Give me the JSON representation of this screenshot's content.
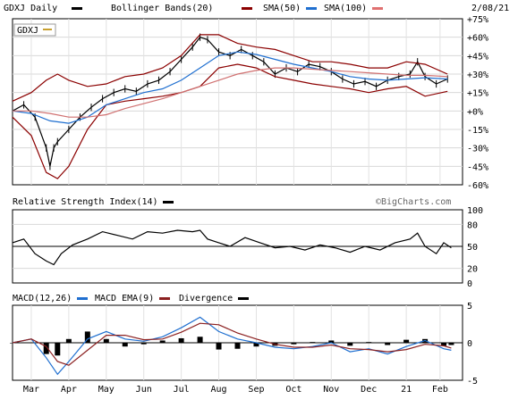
{
  "chart_data": [
    {
      "type": "line",
      "panel": "price",
      "header": {
        "symbol_label": "GDXJ Daily",
        "bollinger_label": "Bollinger Bands(20)",
        "sma50_label": "SMA(50)",
        "sma100_label": "SMA(100)",
        "date_label": "2/08/21"
      },
      "legend_tag": "GDXJ",
      "ylim": [
        -60,
        75
      ],
      "yticks": [
        "+75%",
        "+60%",
        "+45%",
        "+30%",
        "+15%",
        "+0%",
        "-15%",
        "-30%",
        "-45%",
        "-60%"
      ],
      "ytick_values": [
        75,
        60,
        45,
        30,
        15,
        0,
        -15,
        -30,
        -45,
        -60
      ],
      "x_range": [
        0,
        12
      ],
      "xticks": [
        "Mar",
        "Apr",
        "May",
        "Jun",
        "Jul",
        "Aug",
        "Sep",
        "Oct",
        "Nov",
        "Dec",
        "21",
        "Feb"
      ],
      "xtick_positions": [
        0.5,
        1.5,
        2.5,
        3.5,
        4.5,
        5.5,
        6.5,
        7.5,
        8.5,
        9.5,
        10.5,
        11.4
      ],
      "series": [
        {
          "key": "price",
          "x": [
            0,
            0.3,
            0.6,
            0.9,
            1.0,
            1.1,
            1.2,
            1.5,
            1.8,
            2.1,
            2.4,
            2.7,
            3.0,
            3.3,
            3.6,
            3.9,
            4.2,
            4.5,
            4.8,
            5.0,
            5.2,
            5.5,
            5.8,
            6.1,
            6.4,
            6.7,
            7.0,
            7.3,
            7.6,
            7.9,
            8.2,
            8.5,
            8.8,
            9.1,
            9.4,
            9.7,
            10.0,
            10.3,
            10.6,
            10.8,
            11.0,
            11.3,
            11.6
          ],
          "y": [
            0,
            5,
            -5,
            -30,
            -45,
            -30,
            -25,
            -15,
            -5,
            3,
            10,
            15,
            18,
            16,
            22,
            25,
            32,
            42,
            52,
            60,
            58,
            48,
            45,
            50,
            45,
            40,
            30,
            35,
            32,
            38,
            36,
            32,
            26,
            22,
            24,
            20,
            25,
            28,
            30,
            40,
            28,
            22,
            26
          ]
        },
        {
          "key": "bb_upper",
          "x": [
            0,
            0.5,
            0.9,
            1.2,
            1.5,
            2.0,
            2.5,
            3.0,
            3.5,
            4.0,
            4.5,
            5.0,
            5.5,
            6.0,
            6.5,
            7.0,
            7.5,
            8.0,
            8.5,
            9.0,
            9.5,
            10.0,
            10.5,
            11.0,
            11.6
          ],
          "y": [
            8,
            15,
            25,
            30,
            25,
            20,
            22,
            28,
            30,
            35,
            45,
            62,
            62,
            55,
            52,
            50,
            45,
            40,
            40,
            38,
            35,
            35,
            40,
            38,
            30
          ]
        },
        {
          "key": "bb_lower",
          "x": [
            0,
            0.5,
            0.9,
            1.2,
            1.5,
            2.0,
            2.5,
            3.0,
            3.5,
            4.0,
            4.5,
            5.0,
            5.5,
            6.0,
            6.5,
            7.0,
            7.5,
            8.0,
            8.5,
            9.0,
            9.5,
            10.0,
            10.5,
            11.0,
            11.6
          ],
          "y": [
            -5,
            -20,
            -50,
            -55,
            -45,
            -15,
            5,
            8,
            10,
            12,
            15,
            20,
            35,
            38,
            35,
            28,
            25,
            22,
            20,
            18,
            15,
            18,
            20,
            12,
            16
          ]
        },
        {
          "key": "sma50",
          "x": [
            0,
            0.5,
            1.0,
            1.5,
            2.0,
            2.5,
            3.0,
            3.5,
            4.0,
            4.5,
            5.0,
            5.5,
            6.0,
            6.5,
            7.0,
            7.5,
            8.0,
            8.5,
            9.0,
            9.5,
            10.0,
            10.5,
            11.0,
            11.6
          ],
          "y": [
            0,
            -2,
            -8,
            -10,
            -5,
            5,
            10,
            15,
            18,
            25,
            35,
            45,
            48,
            46,
            42,
            38,
            35,
            32,
            28,
            26,
            25,
            26,
            27,
            26
          ]
        },
        {
          "key": "sma100",
          "x": [
            0,
            0.5,
            1.0,
            1.5,
            2.0,
            2.5,
            3.0,
            3.5,
            4.0,
            4.5,
            5.0,
            5.5,
            6.0,
            6.5,
            7.0,
            7.5,
            8.0,
            8.5,
            9.0,
            9.5,
            10.0,
            10.5,
            11.0,
            11.6
          ],
          "y": [
            0,
            0,
            -2,
            -5,
            -5,
            -3,
            2,
            6,
            10,
            15,
            20,
            25,
            30,
            33,
            35,
            35,
            34,
            33,
            32,
            31,
            30,
            29,
            29,
            28
          ]
        }
      ]
    },
    {
      "type": "line",
      "panel": "rsi",
      "title": "Relative Strength Index(14)",
      "watermark": "©BigCharts.com",
      "ylim": [
        0,
        100
      ],
      "yticks": [
        "100",
        "80",
        "50",
        "20",
        "0"
      ],
      "ytick_values": [
        100,
        80,
        50,
        20,
        0
      ],
      "reference_line": 50,
      "series": [
        {
          "key": "rsi",
          "x": [
            0,
            0.3,
            0.6,
            0.9,
            1.1,
            1.3,
            1.6,
            2.0,
            2.4,
            2.8,
            3.2,
            3.6,
            4.0,
            4.4,
            4.8,
            5.0,
            5.2,
            5.5,
            5.8,
            6.2,
            6.6,
            7.0,
            7.4,
            7.8,
            8.2,
            8.6,
            9.0,
            9.4,
            9.8,
            10.2,
            10.6,
            10.8,
            11.0,
            11.3,
            11.5,
            11.7
          ],
          "y": [
            55,
            60,
            40,
            30,
            25,
            40,
            52,
            60,
            70,
            65,
            60,
            70,
            68,
            72,
            70,
            72,
            60,
            55,
            50,
            62,
            55,
            48,
            50,
            45,
            52,
            48,
            42,
            50,
            45,
            55,
            60,
            68,
            50,
            40,
            55,
            48
          ]
        }
      ]
    },
    {
      "type": "line",
      "panel": "macd",
      "header": {
        "macd_label": "MACD(12,26)",
        "ema_label": "MACD EMA(9)",
        "divergence_label": "Divergence"
      },
      "ylim": [
        -5,
        5
      ],
      "yticks": [
        "5",
        "0",
        "-5"
      ],
      "ytick_values": [
        5,
        0,
        -5
      ],
      "series": [
        {
          "key": "macd",
          "x": [
            0,
            0.5,
            0.9,
            1.2,
            1.5,
            2.0,
            2.5,
            3.0,
            3.5,
            4.0,
            4.5,
            5.0,
            5.5,
            6.0,
            6.5,
            7.0,
            7.5,
            8.0,
            8.5,
            9.0,
            9.5,
            10.0,
            10.5,
            11.0,
            11.5,
            11.7
          ],
          "y": [
            0,
            0.5,
            -2,
            -4.2,
            -2.5,
            0.5,
            1.5,
            0.5,
            0.2,
            0.8,
            2,
            3.4,
            1.5,
            0.5,
            0,
            -0.6,
            -0.8,
            -0.5,
            0,
            -1.2,
            -0.8,
            -1.5,
            -0.5,
            0.3,
            -0.8,
            -1
          ]
        },
        {
          "key": "signal",
          "x": [
            0,
            0.5,
            0.9,
            1.2,
            1.5,
            2.0,
            2.5,
            3.0,
            3.5,
            4.0,
            4.5,
            5.0,
            5.5,
            6.0,
            6.5,
            7.0,
            7.5,
            8.0,
            8.5,
            9.0,
            9.5,
            10.0,
            10.5,
            11.0,
            11.5,
            11.7
          ],
          "y": [
            0,
            0.5,
            -0.5,
            -2.5,
            -3,
            -1,
            1,
            1,
            0.4,
            0.5,
            1.4,
            2.6,
            2.4,
            1.3,
            0.5,
            -0.2,
            -0.6,
            -0.6,
            -0.3,
            -0.8,
            -0.9,
            -1.2,
            -0.9,
            -0.2,
            -0.4,
            -0.7
          ]
        }
      ]
    }
  ]
}
